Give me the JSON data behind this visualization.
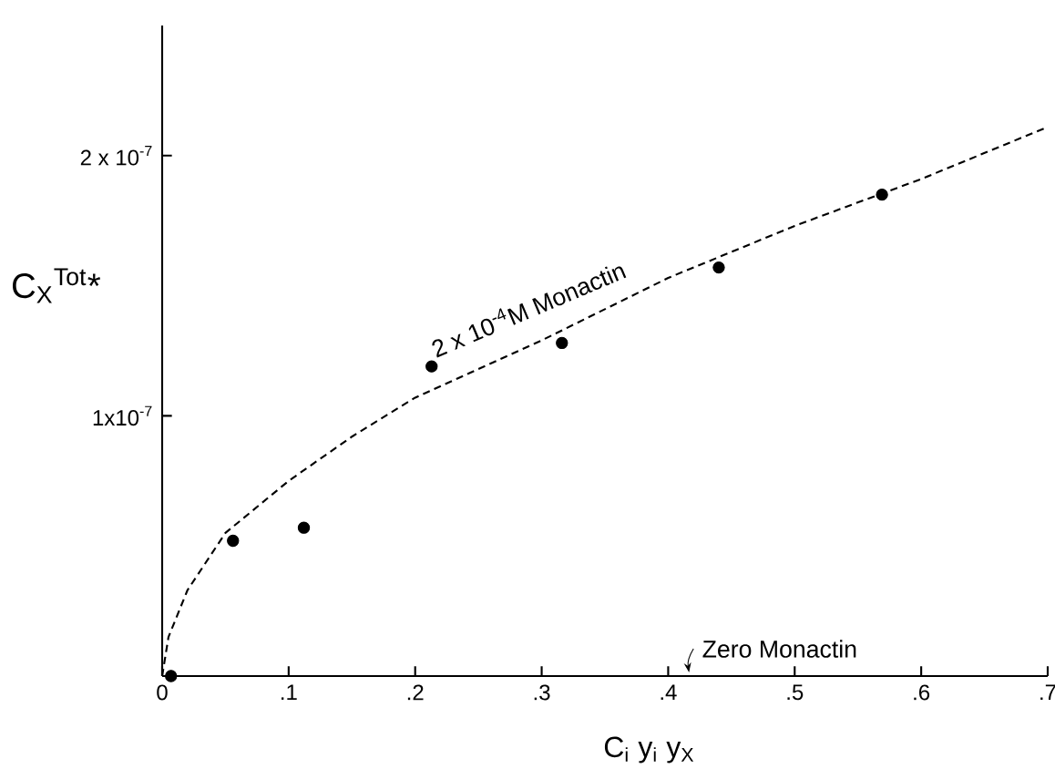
{
  "chart_data": {
    "type": "scatter",
    "xlabel": "C$_{i}$ y$_{i}$ y$_{X}$",
    "ylabel": "C$_{X}$$^{Tot}$*",
    "xlim": [
      0,
      0.7
    ],
    "ylim": [
      0,
      2.5e-07
    ],
    "xticks": [
      0,
      {
        "value": 0.1,
        "label": ".1"
      },
      {
        "value": 0.2,
        "label": ".2"
      },
      {
        "value": 0.3,
        "label": ".3"
      },
      {
        "value": 0.4,
        "label": ".4"
      },
      {
        "value": 0.5,
        "label": ".5"
      },
      {
        "value": 0.6,
        "label": ".6"
      },
      {
        "value": 0.7,
        "label": ".7"
      }
    ],
    "yticks": [
      {
        "value": 1e-07,
        "label": "1x10$^{-7}$"
      },
      {
        "value": 2e-07,
        "label": "2 x 10$^{-7}$"
      }
    ],
    "grid": false,
    "marker": "circle",
    "series": [
      {
        "color": "#000000",
        "x": [
          0.007,
          0.056,
          0.112,
          0.213,
          0.316,
          0.44,
          0.569
        ],
        "values": [
          0,
          5.2e-08,
          5.7e-08,
          1.19e-07,
          1.28e-07,
          1.57e-07,
          1.85e-07
        ]
      },
      {
        "type": "line",
        "name": "2 x 10$^{-4}$M Monactin",
        "line_style": "dashed",
        "marker": "none",
        "color": "#000000",
        "x": [
          0,
          0.005,
          0.02,
          0.05,
          0.1,
          0.15,
          0.2,
          0.3,
          0.4,
          0.5,
          0.6,
          0.7
        ],
        "values": [
          0,
          1.5e-08,
          3.3e-08,
          5.5e-08,
          7.5e-08,
          9.2e-08,
          1.07e-07,
          1.29e-07,
          1.53e-07,
          1.73e-07,
          1.91e-07,
          2.11e-07
        ]
      }
    ],
    "annotations": [
      "Zero Monactin"
    ]
  }
}
